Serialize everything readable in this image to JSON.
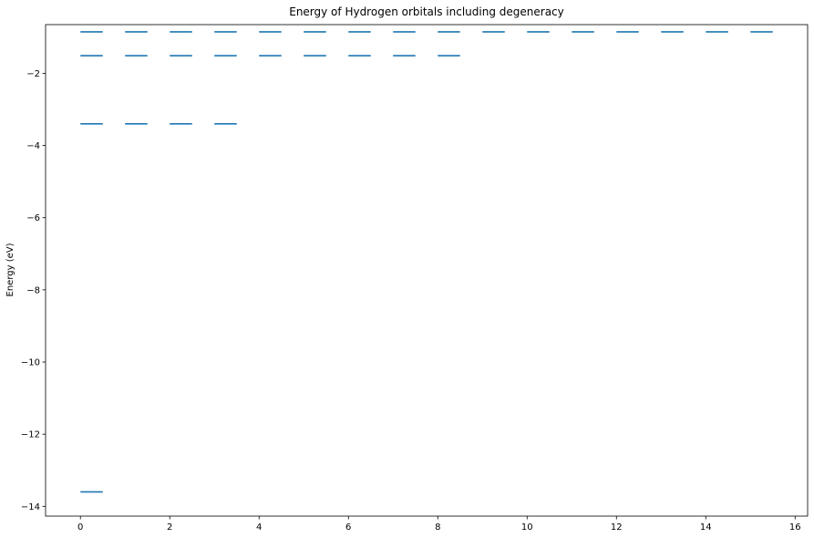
{
  "chart_data": {
    "type": "line",
    "title": "Energy of Hydrogen orbitals including degeneracy",
    "xlabel": "",
    "ylabel": "Energy (eV)",
    "xlim": [
      -0.78,
      16.28
    ],
    "ylim": [
      -14.27,
      -0.65
    ],
    "xticks": [
      0,
      2,
      4,
      6,
      8,
      10,
      12,
      14,
      16
    ],
    "yticks": [
      -14,
      -12,
      -10,
      -8,
      -6,
      -4,
      -2
    ],
    "grid": false,
    "legend": "none",
    "color": "#1f77b4",
    "segment_width": 0.5,
    "series": [
      {
        "x_starts": [
          0
        ],
        "energy": -13.6
      },
      {
        "x_starts": [
          0,
          1,
          2,
          3
        ],
        "energy": -3.4
      },
      {
        "x_starts": [
          0,
          1,
          2,
          3,
          4,
          5,
          6,
          7,
          8
        ],
        "energy": -1.51
      },
      {
        "x_starts": [
          0,
          1,
          2,
          3,
          4,
          5,
          6,
          7,
          8,
          9,
          10,
          11,
          12,
          13,
          14,
          15
        ],
        "energy": -0.85
      }
    ]
  }
}
